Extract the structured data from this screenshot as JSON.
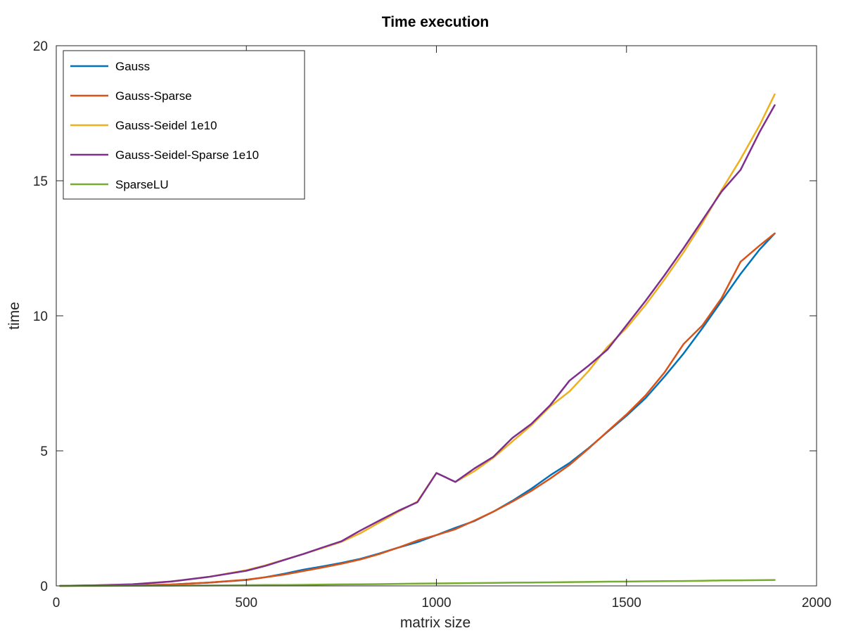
{
  "chart_data": {
    "type": "line",
    "title": "Time execution",
    "xlabel": "matrix size",
    "ylabel": "time",
    "xlim": [
      0,
      2000
    ],
    "ylim": [
      0,
      20
    ],
    "xticks": [
      0,
      500,
      1000,
      1500,
      2000
    ],
    "yticks": [
      0,
      5,
      10,
      15,
      20
    ],
    "grid": false,
    "legend_position": "top-left",
    "series": [
      {
        "name": "Gauss",
        "color": "#0072BD",
        "x": [
          10,
          100,
          200,
          300,
          400,
          500,
          550,
          600,
          650,
          700,
          750,
          800,
          850,
          900,
          950,
          1000,
          1050,
          1100,
          1150,
          1200,
          1250,
          1300,
          1350,
          1400,
          1450,
          1500,
          1550,
          1600,
          1650,
          1700,
          1750,
          1800,
          1850,
          1890
        ],
        "y": [
          0.0,
          0.01,
          0.02,
          0.05,
          0.12,
          0.22,
          0.32,
          0.45,
          0.6,
          0.72,
          0.85,
          1.0,
          1.2,
          1.42,
          1.62,
          1.88,
          2.15,
          2.4,
          2.75,
          3.15,
          3.6,
          4.1,
          4.55,
          5.1,
          5.7,
          6.3,
          6.95,
          7.75,
          8.6,
          9.55,
          10.55,
          11.55,
          12.45,
          13.05
        ]
      },
      {
        "name": "Gauss-Sparse",
        "color": "#D95319",
        "x": [
          10,
          100,
          200,
          300,
          400,
          500,
          550,
          600,
          650,
          700,
          750,
          800,
          850,
          900,
          950,
          1000,
          1050,
          1100,
          1150,
          1200,
          1250,
          1300,
          1350,
          1400,
          1450,
          1500,
          1550,
          1600,
          1650,
          1700,
          1750,
          1800,
          1850,
          1890
        ],
        "y": [
          0.0,
          0.01,
          0.02,
          0.05,
          0.12,
          0.23,
          0.32,
          0.42,
          0.55,
          0.68,
          0.82,
          0.98,
          1.18,
          1.42,
          1.68,
          1.88,
          2.1,
          2.42,
          2.75,
          3.12,
          3.52,
          3.98,
          4.48,
          5.08,
          5.72,
          6.35,
          7.05,
          7.9,
          8.95,
          9.65,
          10.65,
          12.0,
          12.6,
          13.05
        ]
      },
      {
        "name": "Gauss-Seidel 1e10",
        "color": "#EDB120",
        "x": [
          10,
          100,
          200,
          300,
          400,
          500,
          550,
          600,
          650,
          700,
          750,
          800,
          850,
          900,
          950,
          1000,
          1050,
          1100,
          1150,
          1200,
          1250,
          1300,
          1350,
          1400,
          1450,
          1500,
          1550,
          1600,
          1650,
          1700,
          1750,
          1800,
          1850,
          1890
        ],
        "y": [
          0.0,
          0.02,
          0.06,
          0.16,
          0.33,
          0.58,
          0.76,
          0.97,
          1.18,
          1.4,
          1.63,
          1.95,
          2.35,
          2.75,
          3.12,
          4.18,
          3.85,
          4.25,
          4.75,
          5.35,
          5.95,
          6.65,
          7.2,
          7.95,
          8.85,
          9.55,
          10.4,
          11.35,
          12.35,
          13.45,
          14.65,
          15.8,
          17.05,
          18.2
        ]
      },
      {
        "name": "Gauss-Seidel-Sparse 1e10",
        "color": "#7E2F8E",
        "x": [
          10,
          100,
          200,
          300,
          400,
          500,
          550,
          600,
          650,
          700,
          750,
          800,
          850,
          900,
          950,
          1000,
          1050,
          1100,
          1150,
          1200,
          1250,
          1300,
          1350,
          1400,
          1450,
          1500,
          1550,
          1600,
          1650,
          1700,
          1750,
          1800,
          1850,
          1890
        ],
        "y": [
          0.0,
          0.02,
          0.06,
          0.16,
          0.33,
          0.56,
          0.74,
          0.96,
          1.18,
          1.42,
          1.65,
          2.05,
          2.42,
          2.78,
          3.1,
          4.18,
          3.85,
          4.35,
          4.78,
          5.48,
          6.0,
          6.7,
          7.6,
          8.15,
          8.75,
          9.65,
          10.55,
          11.5,
          12.5,
          13.55,
          14.6,
          15.4,
          16.8,
          17.8
        ]
      },
      {
        "name": "SparseLU",
        "color": "#77AC30",
        "x": [
          10,
          100,
          200,
          300,
          400,
          500,
          550,
          600,
          650,
          700,
          750,
          800,
          850,
          900,
          950,
          1000,
          1050,
          1100,
          1150,
          1200,
          1250,
          1300,
          1350,
          1400,
          1450,
          1500,
          1550,
          1600,
          1650,
          1700,
          1750,
          1800,
          1850,
          1890
        ],
        "y": [
          0.0,
          0.0,
          0.005,
          0.01,
          0.015,
          0.025,
          0.03,
          0.035,
          0.04,
          0.05,
          0.055,
          0.06,
          0.065,
          0.075,
          0.085,
          0.09,
          0.1,
          0.105,
          0.11,
          0.12,
          0.125,
          0.13,
          0.14,
          0.145,
          0.155,
          0.16,
          0.17,
          0.175,
          0.18,
          0.19,
          0.2,
          0.205,
          0.21,
          0.22
        ]
      }
    ]
  }
}
